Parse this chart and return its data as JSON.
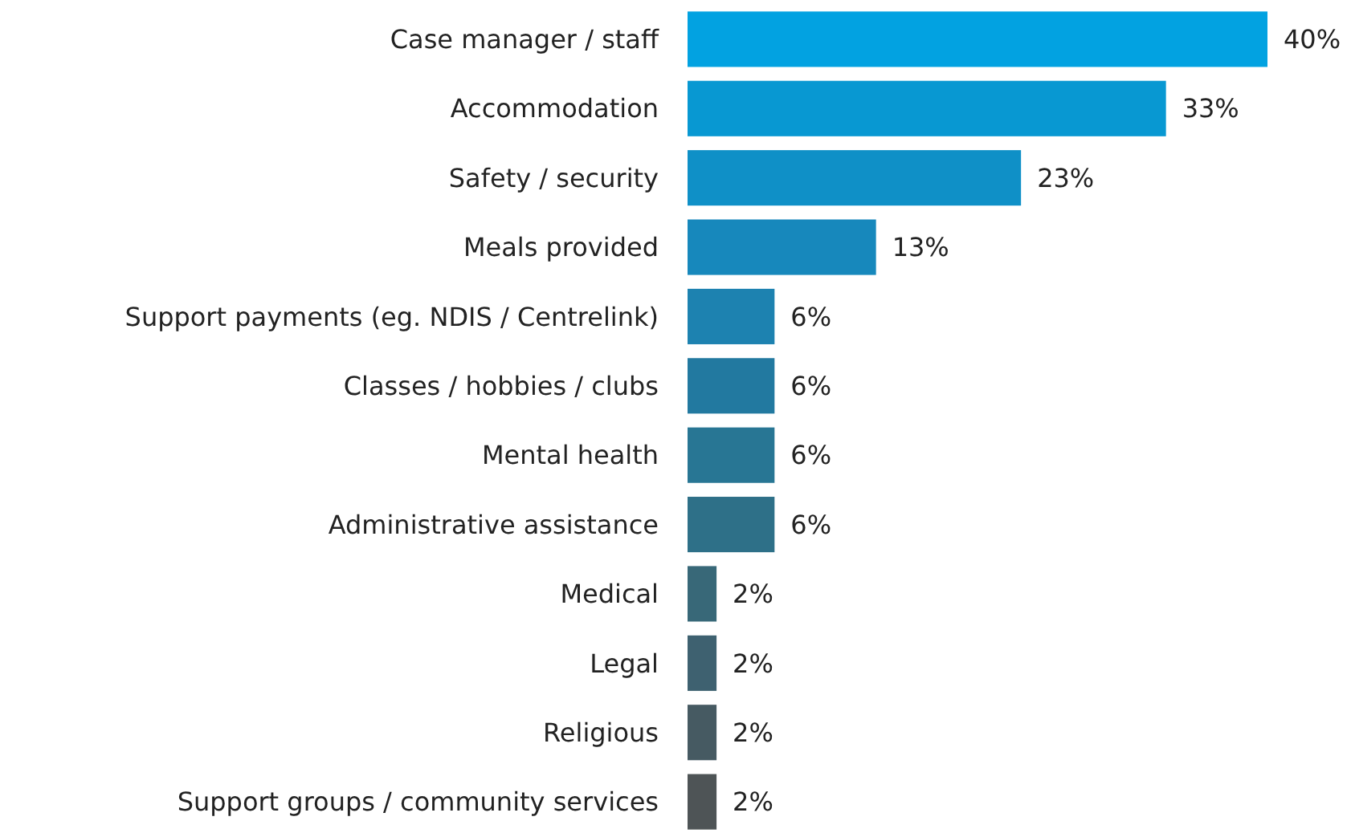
{
  "chart_data": {
    "type": "bar",
    "orientation": "horizontal",
    "categories": [
      "Case manager / staff",
      "Accommodation",
      "Safety / security",
      "Meals provided",
      "Support payments (eg. NDIS / Centrelink)",
      "Classes / hobbies / clubs",
      "Mental health",
      "Administrative assistance",
      "Medical",
      "Legal",
      "Religious",
      "Support groups / community services"
    ],
    "values": [
      40,
      33,
      23,
      13,
      6,
      6,
      6,
      6,
      2,
      2,
      2,
      2
    ],
    "value_labels": [
      "40%",
      "33%",
      "23%",
      "13%",
      "6%",
      "6%",
      "6%",
      "6%",
      "2%",
      "2%",
      "2%",
      "2%"
    ],
    "colors": [
      "#02a2e1",
      "#0898d2",
      "#0f90c7",
      "#1788bc",
      "#1d82b0",
      "#2279a0",
      "#287694",
      "#2e7088",
      "#386878",
      "#3e6170",
      "#465a62",
      "#4e5456"
    ],
    "xlim": [
      0,
      40
    ],
    "tick_labels": "y"
  }
}
